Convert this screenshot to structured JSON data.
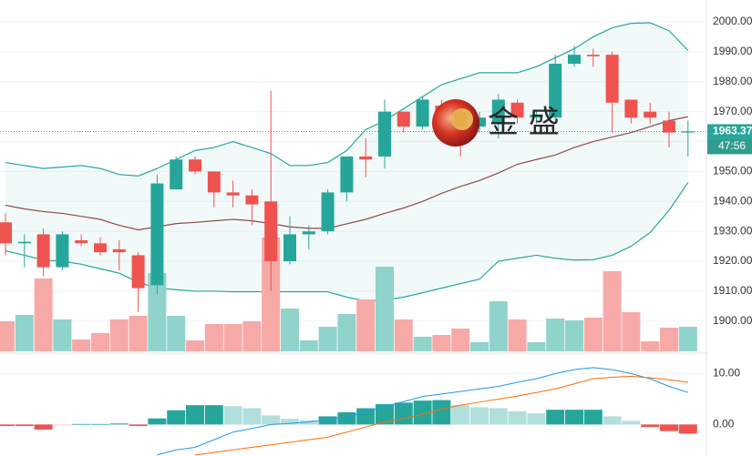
{
  "chart_data": {
    "type": "candlestick",
    "watermark": "金 盛",
    "last_price": 1963.37,
    "last_price_label": "1963.37",
    "countdown": "47:56",
    "up_color": "#26a69a",
    "down_color": "#ef5350",
    "open": [
      1933,
      1926,
      1929,
      1918,
      1927,
      1926,
      1924,
      1922,
      1912,
      1944,
      1954,
      1950,
      1943,
      1942,
      1940,
      1920,
      1929,
      1930,
      1943,
      1955,
      1955,
      1970,
      1965,
      1972,
      1970,
      1965,
      1966,
      1973,
      1968,
      1968,
      1986,
      1989,
      1989,
      1974,
      1970,
      1967,
      1963
    ],
    "high": [
      1936,
      1929,
      1931,
      1930,
      1929,
      1928,
      1927,
      1923,
      1949,
      1955,
      1955,
      1950,
      1947,
      1944,
      1977,
      1935,
      1932,
      1944,
      1955,
      1961,
      1974,
      1970,
      1975,
      1974,
      1971,
      1970,
      1976,
      1974,
      1970,
      1989,
      1992,
      1991,
      1990,
      1974,
      1973,
      1970,
      1967
    ],
    "low": [
      1922,
      1918,
      1915,
      1917,
      1925,
      1922,
      1917,
      1903,
      1909,
      1944,
      1949,
      1938,
      1938,
      1932,
      1910,
      1919,
      1924,
      1929,
      1940,
      1948,
      1951,
      1963,
      1964,
      1968,
      1955,
      1963,
      1961,
      1966,
      1966,
      1966,
      1985,
      1985,
      1963,
      1966,
      1966,
      1958,
      1955
    ],
    "close": [
      1926,
      1926.5,
      1918,
      1929,
      1926,
      1923,
      1923,
      1911,
      1946,
      1954,
      1950,
      1943,
      1942,
      1939,
      1920,
      1929,
      1930,
      1943,
      1955,
      1954,
      1970,
      1965,
      1974,
      1970,
      1965,
      1968,
      1974,
      1968,
      1969,
      1986,
      1989,
      1988.5,
      1973,
      1968,
      1968,
      1963,
      1963.37
    ],
    "bands": [
      {
        "name": "upper",
        "color": "#26a69a",
        "values": [
          1953,
          1952,
          1951,
          1951.5,
          1952,
          1951,
          1949,
          1948.5,
          1951,
          1954,
          1957,
          1958,
          1960,
          1958,
          1956,
          1952,
          1952,
          1953,
          1957,
          1964,
          1967,
          1971,
          1975,
          1979,
          1981,
          1983,
          1983,
          1983,
          1985,
          1988,
          1991,
          1995,
          1998,
          1999.5,
          1999.7,
          1997,
          1990.5
        ]
      },
      {
        "name": "middle",
        "color": "#8d4a4a",
        "values": [
          1938.7,
          1937.5,
          1936.6,
          1936,
          1935,
          1934,
          1932,
          1930.5,
          1931.5,
          1932.6,
          1933,
          1933.5,
          1934,
          1933.5,
          1932.6,
          1931.5,
          1931,
          1931,
          1932.5,
          1934,
          1936,
          1937.8,
          1940,
          1942.7,
          1945,
          1947,
          1949.5,
          1952.4,
          1954,
          1955.5,
          1958,
          1960,
          1961.5,
          1963,
          1965,
          1967,
          1968.3
        ]
      },
      {
        "name": "lower",
        "color": "#26a69a",
        "values": [
          1923.5,
          1922,
          1920.4,
          1920,
          1919,
          1917.5,
          1916,
          1913,
          1911,
          1910.5,
          1910,
          1910,
          1909.8,
          1909.8,
          1909.8,
          1909.8,
          1909.8,
          1909.8,
          1908,
          1906.7,
          1907,
          1908,
          1909.5,
          1911,
          1912.5,
          1914,
          1920,
          1921,
          1922,
          1921,
          1920.4,
          1920.5,
          1922,
          1925,
          1929.6,
          1937,
          1946.3
        ]
      }
    ],
    "band_fill": "rgba(38,166,154,0.06)",
    "volume": [
      33,
      40,
      80,
      35,
      13,
      20,
      35,
      39,
      86,
      39,
      12,
      30,
      30,
      33,
      125,
      47,
      12,
      27,
      41,
      57,
      93,
      35,
      16,
      18,
      25,
      10,
      55,
      35,
      10,
      36,
      34,
      37,
      88,
      43,
      11,
      26,
      27
    ],
    "vlim": [
      0,
      150
    ],
    "volume_up_color": "#8fd3cb",
    "volume_down_color": "#f7a9a8",
    "ylim": [
      1889.9,
      2007.3
    ],
    "yticks": [
      {
        "value": 1900,
        "label": "1900.00"
      },
      {
        "value": 1910,
        "label": "1910.00"
      },
      {
        "value": 1920,
        "label": "1920.00"
      },
      {
        "value": 1930,
        "label": "1930.00"
      },
      {
        "value": 1940,
        "label": "1940.00"
      },
      {
        "value": 1950,
        "label": "1950.00"
      },
      {
        "value": 1960,
        "label": "1960.00"
      },
      {
        "value": 1970,
        "label": "1970.00"
      },
      {
        "value": 1980,
        "label": "1980.00"
      },
      {
        "value": 1990,
        "label": "1990.00"
      },
      {
        "value": 2000,
        "label": "2000.00"
      }
    ],
    "grid": true,
    "macd": {
      "histogram": [
        -0.3,
        -0.3,
        -1.0,
        -0.2,
        0.1,
        0.1,
        0.2,
        -0.3,
        1.2,
        2.8,
        3.8,
        3.8,
        3.6,
        3.2,
        1.8,
        1.1,
        0.8,
        1.6,
        2.4,
        3.2,
        4.0,
        4.3,
        4.7,
        4.8,
        3.8,
        3.4,
        3.2,
        2.6,
        2.2,
        2.9,
        2.9,
        2.9,
        1.6,
        0.7,
        -0.5,
        -1.3,
        -1.8
      ],
      "hist_colors": {
        "up_rising": "#26a69a",
        "up_falling": "#b2dfdb",
        "down_falling": "#ef5350",
        "down_rising": "#ffcdd2"
      },
      "series": [
        {
          "name": "MACD",
          "color": "#2196f3",
          "values": [
            null,
            null,
            null,
            null,
            null,
            null,
            null,
            null,
            -6,
            -5,
            -4.5,
            -3,
            -1.5,
            -0.8,
            0,
            0.2,
            0.5,
            1,
            1.5,
            2.5,
            3.5,
            4.5,
            5.5,
            6,
            6.5,
            7,
            7.5,
            8.3,
            9,
            10,
            10.8,
            11.2,
            10.8,
            10,
            9,
            7.5,
            6.3
          ]
        },
        {
          "name": "Signal",
          "color": "#ff6d00",
          "values": [
            null,
            null,
            null,
            null,
            null,
            null,
            null,
            null,
            null,
            null,
            -6,
            -5.5,
            -5,
            -4.5,
            -4,
            -3.5,
            -3,
            -2.5,
            -1.5,
            -0.5,
            0.5,
            1.2,
            2,
            3,
            3.8,
            4.4,
            5,
            5.6,
            6.3,
            7,
            8,
            9,
            9.3,
            9.5,
            9.2,
            8.8,
            8.3
          ]
        }
      ],
      "ylim": [
        -6.2,
        13.5
      ],
      "yticks": [
        {
          "value": 0,
          "label": "0.00"
        },
        {
          "value": 10,
          "label": "10.00"
        }
      ]
    }
  }
}
